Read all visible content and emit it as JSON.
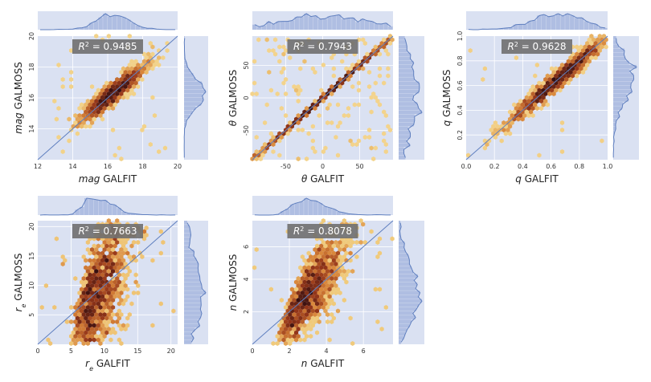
{
  "chart_data": [
    {
      "id": "mag",
      "type": "hexbin-joint",
      "xlabel_sym": "mag",
      "xlabel_text": " GALFIT",
      "ylabel_sym": "mag",
      "ylabel_text": " GALMOSS",
      "r2_label": "R",
      "r2_value": " = 0.9485",
      "xlim": [
        12,
        20
      ],
      "ylim": [
        12,
        20
      ],
      "xticks": [
        12,
        14,
        16,
        18,
        20
      ],
      "yticks": [
        14,
        16,
        18,
        20
      ],
      "center": [
        16.3,
        16.3
      ],
      "spread_along": 0.9,
      "spread_across": 0.35,
      "outlier_rate": 0.03
    },
    {
      "id": "theta",
      "type": "hexbin-joint",
      "xlabel_sym": "θ",
      "xlabel_text": " GALFIT",
      "ylabel_sym": "θ",
      "ylabel_text": " GALMOSS",
      "r2_label": "R",
      "r2_value": " = 0.7943",
      "xlim": [
        -95,
        95
      ],
      "ylim": [
        -95,
        95
      ],
      "xticks": [
        -50,
        0,
        50
      ],
      "yticks": [
        -50,
        0,
        50
      ],
      "center": [
        0,
        0
      ],
      "spread_along": 55,
      "spread_across": 1.5,
      "outlier_rate": 0.12
    },
    {
      "id": "q",
      "type": "hexbin-joint",
      "xlabel_sym": "q",
      "xlabel_text": " GALFIT",
      "ylabel_sym": "q",
      "ylabel_text": " GALMOSS",
      "r2_label": "R",
      "r2_value": " = 0.9628",
      "xlim": [
        0.0,
        1.0
      ],
      "ylim": [
        0.0,
        1.0
      ],
      "xticks": [
        0.0,
        0.2,
        0.4,
        0.6,
        0.8,
        1.0
      ],
      "yticks": [
        0.2,
        0.4,
        0.6,
        0.8,
        1.0
      ],
      "center": [
        0.65,
        0.65
      ],
      "spread_along": 0.18,
      "spread_across": 0.04,
      "outlier_rate": 0.01
    },
    {
      "id": "re",
      "type": "hexbin-joint",
      "xlabel_sym": "r",
      "xlabel_sub": "e",
      "xlabel_text": " GALFIT",
      "ylabel_sym": "r",
      "ylabel_sub": "e",
      "ylabel_text": " GALMOSS",
      "r2_label": "R",
      "r2_value": " = 0.7663",
      "xlim": [
        0,
        21
      ],
      "ylim": [
        0,
        21
      ],
      "xticks": [
        0,
        5,
        10,
        15,
        20
      ],
      "yticks": [
        5,
        10,
        15,
        20
      ],
      "center": [
        5.5,
        5.5
      ],
      "spread_along": 3.5,
      "spread_across": 1.5,
      "outlier_rate": 0.02
    },
    {
      "id": "n",
      "type": "hexbin-joint",
      "xlabel_sym": "n",
      "xlabel_text": " GALFIT",
      "ylabel_sym": "n",
      "ylabel_text": " GALMOSS",
      "r2_label": "R",
      "r2_value": " = 0.8078",
      "xlim": [
        0,
        7.6
      ],
      "ylim": [
        0,
        7.6
      ],
      "xticks": [
        0,
        2,
        4,
        6
      ],
      "yticks": [
        2,
        4,
        6
      ],
      "center": [
        1.6,
        1.6
      ],
      "spread_along": 1.4,
      "spread_across": 0.6,
      "outlier_rate": 0.02
    }
  ],
  "colors": {
    "panel_bg": "#dae1f2",
    "line": "#5f7fbf",
    "bar": "#a7b7df",
    "r2_box": "#6f6f6f"
  }
}
